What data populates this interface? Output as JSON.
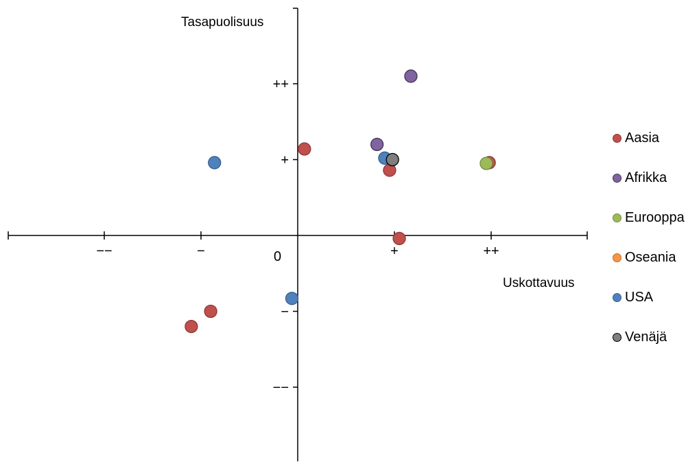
{
  "chart_data": {
    "type": "scatter",
    "xlabel": "Uskottavuus",
    "ylabel": "Tasapuolisuus",
    "xlim": [
      -3,
      3
    ],
    "ylim": [
      -3,
      3
    ],
    "grid": false,
    "legend_position": "right",
    "x_ticks": [
      {
        "value": -2,
        "label": "−−"
      },
      {
        "value": -1,
        "label": "−"
      },
      {
        "value": 1,
        "label": "+"
      },
      {
        "value": 2,
        "label": "++"
      }
    ],
    "y_ticks": [
      {
        "value": 2,
        "label": "++"
      },
      {
        "value": 1,
        "label": "+"
      },
      {
        "value": -1,
        "label": "−"
      },
      {
        "value": -2,
        "label": "−−"
      }
    ],
    "origin_label": "0",
    "series": [
      {
        "name": "Aasia",
        "color": "#c0504d",
        "stroke": "#8c3836",
        "points": [
          [
            0.07,
            1.14
          ],
          [
            0.95,
            0.86
          ],
          [
            1.98,
            0.96
          ],
          [
            1.05,
            -0.04
          ],
          [
            -0.9,
            -1.0
          ],
          [
            -1.1,
            -1.2
          ]
        ]
      },
      {
        "name": "Afrikka",
        "color": "#8064a2",
        "stroke": "#3f3151",
        "points": [
          [
            0.82,
            1.2
          ],
          [
            1.17,
            2.1
          ]
        ]
      },
      {
        "name": "Eurooppa",
        "color": "#9bbb59",
        "stroke": "#71893f",
        "points": [
          [
            1.95,
            0.95
          ]
        ]
      },
      {
        "name": "Oseania",
        "color": "#f79646",
        "stroke": "#b66d31",
        "points": []
      },
      {
        "name": "USA",
        "color": "#4f81bd",
        "stroke": "#385d8a",
        "points": [
          [
            -0.86,
            0.96
          ],
          [
            0.9,
            1.02
          ],
          [
            -0.06,
            -0.83
          ]
        ]
      },
      {
        "name": "Venäjä",
        "color": "#7f7f7f",
        "stroke": "#000000",
        "points": [
          [
            0.98,
            1.0
          ]
        ]
      }
    ]
  }
}
